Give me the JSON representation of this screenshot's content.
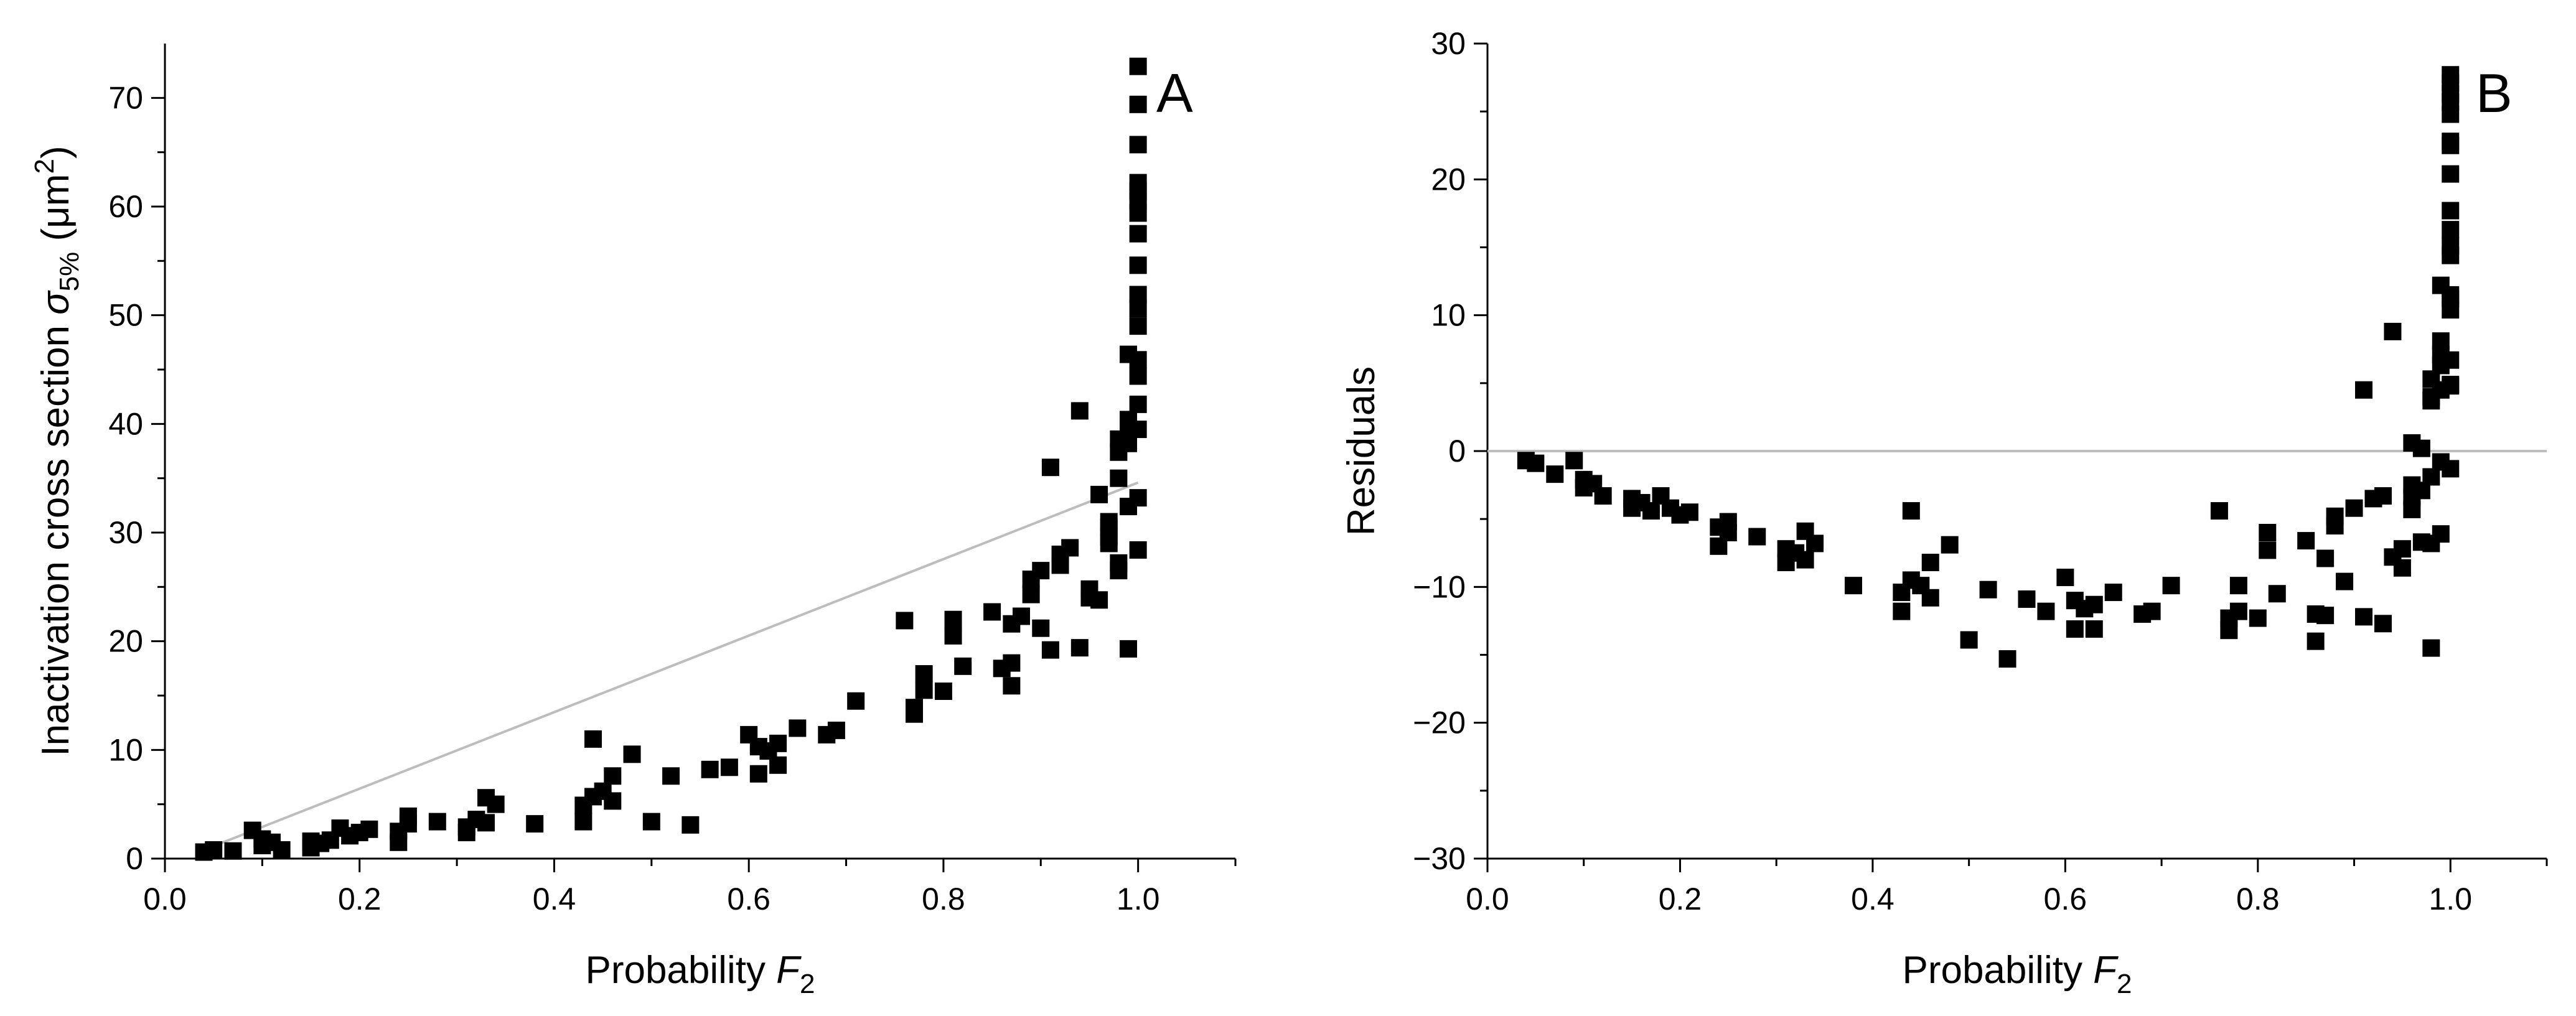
{
  "chart_data": [
    {
      "type": "scatter",
      "panel_label": "A",
      "xlabel": "Probability F2",
      "ylabel": "Inactivation cross section σ5% (μm2)",
      "xlim": [
        0.0,
        1.1
      ],
      "ylim": [
        0,
        75
      ],
      "xticks": [
        "0.0",
        "0.2",
        "0.4",
        "0.6",
        "0.8",
        "1.0"
      ],
      "yticks": [
        "0",
        "10",
        "20",
        "30",
        "40",
        "50",
        "60",
        "70"
      ],
      "fit_line": {
        "x": [
          0.04,
          1.0
        ],
        "y": [
          0.8,
          34.6
        ],
        "color": "#bdbdbd"
      },
      "marker_color": "#000000",
      "points": [
        [
          0.04,
          0.6
        ],
        [
          0.05,
          0.8
        ],
        [
          0.07,
          0.7
        ],
        [
          0.09,
          2.6
        ],
        [
          0.1,
          1.8
        ],
        [
          0.1,
          1.2
        ],
        [
          0.11,
          1.5
        ],
        [
          0.12,
          0.8
        ],
        [
          0.15,
          1.6
        ],
        [
          0.15,
          1.0
        ],
        [
          0.16,
          1.4
        ],
        [
          0.17,
          1.7
        ],
        [
          0.18,
          2.8
        ],
        [
          0.19,
          2.1
        ],
        [
          0.2,
          2.4
        ],
        [
          0.21,
          2.7
        ],
        [
          0.24,
          2.5
        ],
        [
          0.24,
          1.5
        ],
        [
          0.25,
          3.2
        ],
        [
          0.25,
          3.9
        ],
        [
          0.28,
          3.4
        ],
        [
          0.31,
          2.9
        ],
        [
          0.31,
          2.4
        ],
        [
          0.32,
          3.6
        ],
        [
          0.33,
          5.6
        ],
        [
          0.33,
          3.3
        ],
        [
          0.34,
          5.0
        ],
        [
          0.38,
          3.2
        ],
        [
          0.43,
          3.4
        ],
        [
          0.43,
          4.9
        ],
        [
          0.44,
          11.0
        ],
        [
          0.44,
          5.7
        ],
        [
          0.45,
          6.2
        ],
        [
          0.46,
          7.6
        ],
        [
          0.46,
          5.3
        ],
        [
          0.48,
          9.6
        ],
        [
          0.5,
          3.4
        ],
        [
          0.52,
          7.6
        ],
        [
          0.54,
          3.1
        ],
        [
          0.56,
          8.2
        ],
        [
          0.58,
          8.4
        ],
        [
          0.6,
          11.4
        ],
        [
          0.61,
          7.8
        ],
        [
          0.61,
          10.3
        ],
        [
          0.62,
          9.9
        ],
        [
          0.63,
          8.6
        ],
        [
          0.63,
          10.6
        ],
        [
          0.65,
          12.0
        ],
        [
          0.68,
          11.4
        ],
        [
          0.69,
          11.8
        ],
        [
          0.71,
          14.5
        ],
        [
          0.76,
          21.9
        ],
        [
          0.77,
          13.9
        ],
        [
          0.77,
          13.3
        ],
        [
          0.78,
          17.0
        ],
        [
          0.78,
          15.5
        ],
        [
          0.8,
          15.4
        ],
        [
          0.81,
          20.5
        ],
        [
          0.81,
          22.0
        ],
        [
          0.82,
          17.7
        ],
        [
          0.85,
          22.7
        ],
        [
          0.86,
          17.5
        ],
        [
          0.87,
          21.6
        ],
        [
          0.87,
          15.9
        ],
        [
          0.87,
          18.0
        ],
        [
          0.88,
          22.3
        ],
        [
          0.89,
          25.7
        ],
        [
          0.89,
          24.3
        ],
        [
          0.9,
          21.2
        ],
        [
          0.9,
          26.5
        ],
        [
          0.91,
          36.0
        ],
        [
          0.91,
          19.2
        ],
        [
          0.92,
          28.0
        ],
        [
          0.92,
          27.0
        ],
        [
          0.93,
          28.6
        ],
        [
          0.94,
          19.4
        ],
        [
          0.94,
          41.2
        ],
        [
          0.95,
          24.8
        ],
        [
          0.95,
          24.0
        ],
        [
          0.96,
          33.5
        ],
        [
          0.96,
          23.8
        ],
        [
          0.97,
          30.5
        ],
        [
          0.97,
          29.6
        ],
        [
          0.97,
          29.0
        ],
        [
          0.97,
          31.0
        ],
        [
          0.98,
          37.4
        ],
        [
          0.98,
          38.6
        ],
        [
          0.98,
          26.5
        ],
        [
          0.98,
          27.2
        ],
        [
          0.98,
          35.0
        ],
        [
          0.99,
          39.6
        ],
        [
          0.99,
          19.3
        ],
        [
          0.99,
          38.2
        ],
        [
          0.99,
          32.4
        ],
        [
          0.99,
          40.4
        ],
        [
          0.99,
          46.4
        ],
        [
          0.99,
          39.0
        ],
        [
          1.0,
          41.8
        ],
        [
          1.0,
          44.4
        ],
        [
          1.0,
          45.9
        ],
        [
          1.0,
          49.0
        ],
        [
          1.0,
          50.6
        ],
        [
          1.0,
          51.9
        ],
        [
          1.0,
          54.6
        ],
        [
          1.0,
          57.5
        ],
        [
          1.0,
          59.4
        ],
        [
          1.0,
          60.5
        ],
        [
          1.0,
          61.4
        ],
        [
          1.0,
          62.2
        ],
        [
          1.0,
          65.7
        ],
        [
          1.0,
          69.4
        ],
        [
          1.0,
          72.9
        ],
        [
          1.0,
          39.5
        ],
        [
          1.0,
          33.2
        ],
        [
          1.0,
          28.4
        ]
      ]
    },
    {
      "type": "scatter",
      "panel_label": "B",
      "xlabel": "Probability F2",
      "ylabel": "Residuals",
      "xlim": [
        0.0,
        1.1
      ],
      "ylim": [
        -30,
        30
      ],
      "xticks": [
        "0.0",
        "0.2",
        "0.4",
        "0.6",
        "0.8",
        "1.0"
      ],
      "yticks": [
        "−30",
        "−20",
        "−10",
        "0",
        "10",
        "20",
        "30"
      ],
      "reference_line": {
        "y": 0,
        "color": "#bdbdbd"
      },
      "marker_color": "#000000",
      "points": [
        [
          0.04,
          -0.7
        ],
        [
          0.05,
          -0.9
        ],
        [
          0.07,
          -1.7
        ],
        [
          0.09,
          -0.7
        ],
        [
          0.1,
          -2.1
        ],
        [
          0.1,
          -2.7
        ],
        [
          0.11,
          -2.4
        ],
        [
          0.12,
          -3.3
        ],
        [
          0.15,
          -3.5
        ],
        [
          0.15,
          -4.2
        ],
        [
          0.16,
          -3.8
        ],
        [
          0.17,
          -4.4
        ],
        [
          0.18,
          -3.3
        ],
        [
          0.19,
          -4.2
        ],
        [
          0.2,
          -4.7
        ],
        [
          0.21,
          -4.5
        ],
        [
          0.24,
          -5.6
        ],
        [
          0.24,
          -7.0
        ],
        [
          0.25,
          -5.2
        ],
        [
          0.25,
          -6.0
        ],
        [
          0.28,
          -6.3
        ],
        [
          0.31,
          -7.2
        ],
        [
          0.31,
          -8.2
        ],
        [
          0.32,
          -7.5
        ],
        [
          0.33,
          -5.9
        ],
        [
          0.33,
          -8.0
        ],
        [
          0.34,
          -6.8
        ],
        [
          0.38,
          -9.9
        ],
        [
          0.43,
          -11.8
        ],
        [
          0.43,
          -10.4
        ],
        [
          0.44,
          -4.4
        ],
        [
          0.44,
          -9.5
        ],
        [
          0.45,
          -9.9
        ],
        [
          0.46,
          -8.2
        ],
        [
          0.46,
          -10.8
        ],
        [
          0.48,
          -6.9
        ],
        [
          0.5,
          -13.9
        ],
        [
          0.52,
          -10.2
        ],
        [
          0.54,
          -15.3
        ],
        [
          0.56,
          -10.9
        ],
        [
          0.58,
          -11.8
        ],
        [
          0.6,
          -9.3
        ],
        [
          0.61,
          -13.1
        ],
        [
          0.61,
          -11.0
        ],
        [
          0.62,
          -11.6
        ],
        [
          0.63,
          -13.1
        ],
        [
          0.63,
          -11.3
        ],
        [
          0.65,
          -10.4
        ],
        [
          0.68,
          -12.0
        ],
        [
          0.69,
          -11.8
        ],
        [
          0.71,
          -9.9
        ],
        [
          0.76,
          -4.4
        ],
        [
          0.77,
          -12.3
        ],
        [
          0.77,
          -13.2
        ],
        [
          0.78,
          -9.9
        ],
        [
          0.78,
          -11.8
        ],
        [
          0.8,
          -12.3
        ],
        [
          0.81,
          -7.3
        ],
        [
          0.81,
          -6.0
        ],
        [
          0.82,
          -10.5
        ],
        [
          0.85,
          -6.6
        ],
        [
          0.86,
          -12.0
        ],
        [
          0.86,
          -14.0
        ],
        [
          0.87,
          -7.9
        ],
        [
          0.87,
          -12.1
        ],
        [
          0.88,
          -5.5
        ],
        [
          0.88,
          -4.8
        ],
        [
          0.89,
          -9.6
        ],
        [
          0.9,
          -4.2
        ],
        [
          0.91,
          4.5
        ],
        [
          0.91,
          -12.2
        ],
        [
          0.92,
          -3.5
        ],
        [
          0.93,
          -3.3
        ],
        [
          0.93,
          -12.7
        ],
        [
          0.94,
          8.8
        ],
        [
          0.94,
          -7.8
        ],
        [
          0.95,
          -8.6
        ],
        [
          0.95,
          -7.2
        ],
        [
          0.96,
          0.6
        ],
        [
          0.96,
          -2.5
        ],
        [
          0.96,
          -3.4
        ],
        [
          0.96,
          -4.3
        ],
        [
          0.97,
          0.2
        ],
        [
          0.97,
          -2.9
        ],
        [
          0.97,
          -6.7
        ],
        [
          0.98,
          -6.8
        ],
        [
          0.98,
          4.0
        ],
        [
          0.98,
          5.3
        ],
        [
          0.98,
          3.7
        ],
        [
          0.98,
          -14.5
        ],
        [
          0.98,
          -1.9
        ],
        [
          0.99,
          6.3
        ],
        [
          0.99,
          7.1
        ],
        [
          0.99,
          4.5
        ],
        [
          0.99,
          12.2
        ],
        [
          0.99,
          -0.8
        ],
        [
          0.99,
          8.1
        ],
        [
          0.99,
          -6.1
        ],
        [
          1.0,
          -1.3
        ],
        [
          1.0,
          4.8
        ],
        [
          1.0,
          4.9
        ],
        [
          1.0,
          6.7
        ],
        [
          1.0,
          10.4
        ],
        [
          1.0,
          11.5
        ],
        [
          1.0,
          11.2
        ],
        [
          1.0,
          14.4
        ],
        [
          1.0,
          15.1
        ],
        [
          1.0,
          16.3
        ],
        [
          1.0,
          17.7
        ],
        [
          1.0,
          20.4
        ],
        [
          1.0,
          22.5
        ],
        [
          1.0,
          22.8
        ],
        [
          1.0,
          24.8
        ],
        [
          1.0,
          25.7
        ],
        [
          1.0,
          26.3
        ],
        [
          1.0,
          27.1
        ],
        [
          1.0,
          27.7
        ]
      ]
    }
  ]
}
